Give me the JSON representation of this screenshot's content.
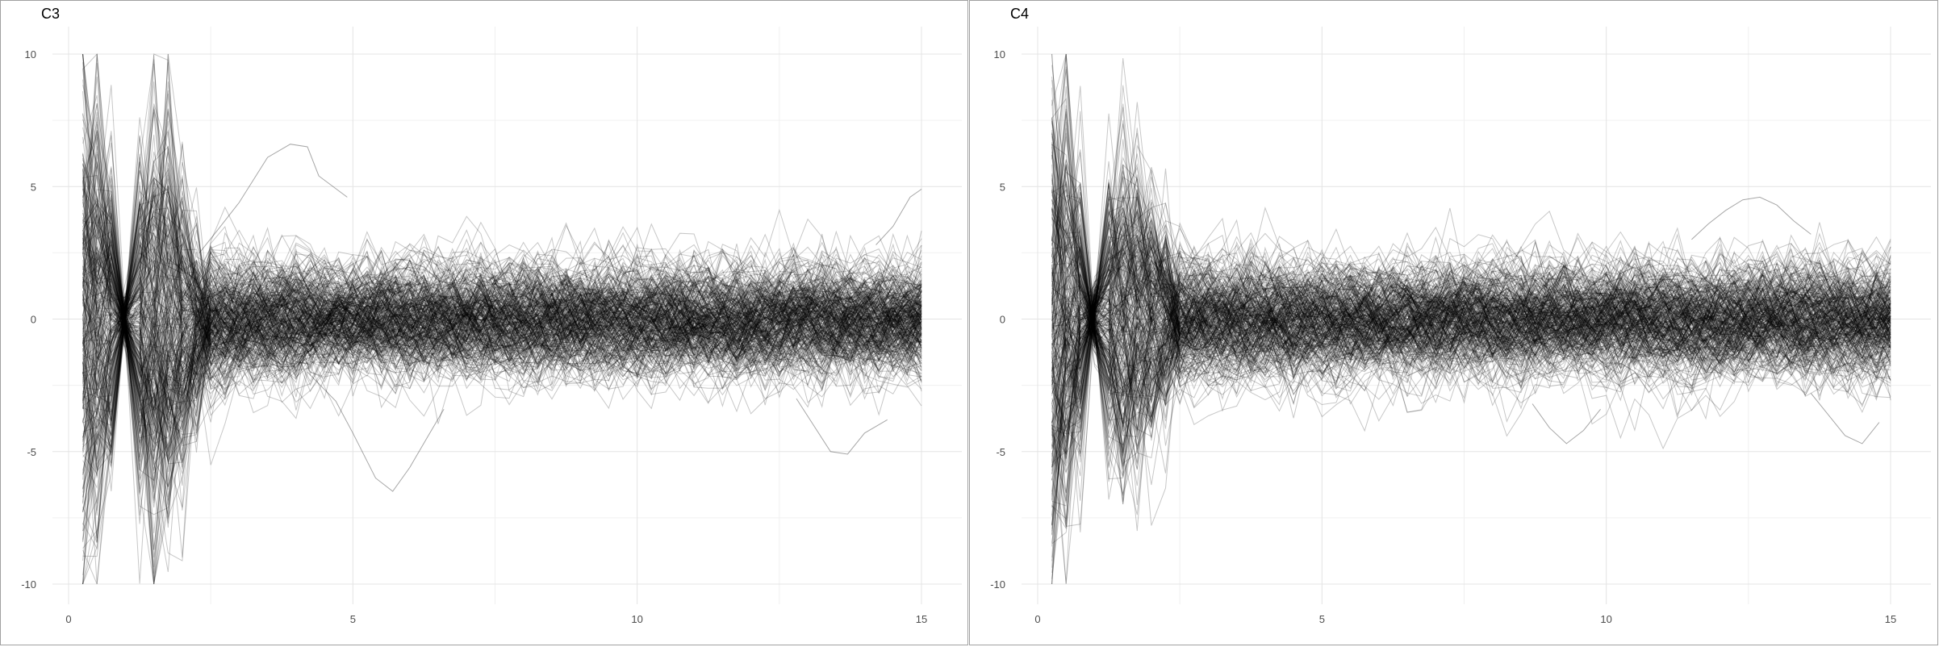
{
  "chart_data": [
    {
      "type": "line",
      "title": "C3",
      "xlabel": "",
      "ylabel": "",
      "xlim": [
        0,
        15
      ],
      "ylim": [
        -10,
        10
      ],
      "x_ticks": [
        0,
        5,
        10,
        15
      ],
      "y_ticks": [
        10,
        5,
        0,
        -5,
        -10
      ],
      "grid": true,
      "legend": "none",
      "line_color": "#000000",
      "series_count": 320,
      "x_sample_points": [
        0.25,
        0.5,
        0.75,
        1.0,
        1.25,
        1.5,
        1.75,
        2.0,
        2.25,
        2.5,
        2.75,
        3.0,
        3.25,
        3.5,
        3.75,
        4.0,
        4.25,
        4.5,
        4.75,
        5.0,
        5.25,
        5.5,
        5.75,
        6.0,
        6.25,
        6.5,
        6.75,
        7.0,
        7.25,
        7.5,
        7.75,
        8.0,
        8.25,
        8.5,
        8.75,
        9.0,
        9.25,
        9.5,
        9.75,
        10.0,
        10.25,
        10.5,
        10.75,
        11.0,
        11.25,
        11.5,
        11.75,
        12.0,
        12.25,
        12.5,
        12.75,
        13.0,
        13.25,
        13.5,
        13.75,
        14.0,
        14.25,
        14.5,
        14.75,
        15.0
      ],
      "spread_profile": {
        "x": [
          0.25,
          0.5,
          0.75,
          1.0,
          1.25,
          1.5,
          1.75,
          2.0,
          2.25,
          2.5,
          2.75,
          3.0,
          4.0,
          5.0,
          15.0
        ],
        "sd": [
          4.5,
          4.0,
          2.8,
          0.5,
          3.0,
          4.2,
          3.6,
          2.6,
          1.9,
          1.6,
          1.4,
          1.3,
          1.25,
          1.2,
          1.2
        ]
      },
      "annotations": [
        {
          "x": [
            2.3,
            2.6,
            3.0,
            3.5,
            3.9,
            4.2,
            4.4,
            4.9
          ],
          "y": [
            2.5,
            3.3,
            4.4,
            6.1,
            6.6,
            6.5,
            5.4,
            4.6
          ]
        },
        {
          "x": [
            4.2,
            4.7,
            5.0,
            5.4,
            5.7,
            6.0,
            6.3,
            6.6
          ],
          "y": [
            -2.0,
            -3.1,
            -4.3,
            -6.0,
            -6.5,
            -5.6,
            -4.5,
            -3.4
          ]
        },
        {
          "x": [
            12.8,
            13.1,
            13.4,
            13.7,
            14.0,
            14.4
          ],
          "y": [
            -3.0,
            -4.0,
            -5.0,
            -5.1,
            -4.3,
            -3.8
          ]
        },
        {
          "x": [
            14.2,
            14.5,
            14.8,
            15.0
          ],
          "y": [
            2.8,
            3.5,
            4.6,
            4.9
          ]
        }
      ]
    },
    {
      "type": "line",
      "title": "C4",
      "xlabel": "",
      "ylabel": "",
      "xlim": [
        0,
        15
      ],
      "ylim": [
        -10,
        10
      ],
      "x_ticks": [
        0,
        5,
        10,
        15
      ],
      "y_ticks": [
        10,
        5,
        0,
        -5,
        -10
      ],
      "grid": true,
      "legend": "none",
      "line_color": "#000000",
      "series_count": 320,
      "x_sample_points": [
        0.25,
        0.5,
        0.75,
        1.0,
        1.25,
        1.5,
        1.75,
        2.0,
        2.25,
        2.5,
        2.75,
        3.0,
        3.25,
        3.5,
        3.75,
        4.0,
        4.25,
        4.5,
        4.75,
        5.0,
        5.25,
        5.5,
        5.75,
        6.0,
        6.25,
        6.5,
        6.75,
        7.0,
        7.25,
        7.5,
        7.75,
        8.0,
        8.25,
        8.5,
        8.75,
        9.0,
        9.25,
        9.5,
        9.75,
        10.0,
        10.25,
        10.5,
        10.75,
        11.0,
        11.25,
        11.5,
        11.75,
        12.0,
        12.25,
        12.5,
        12.75,
        13.0,
        13.25,
        13.5,
        13.75,
        14.0,
        14.25,
        14.5,
        14.75,
        15.0
      ],
      "spread_profile": {
        "x": [
          0.25,
          0.5,
          0.75,
          1.0,
          1.25,
          1.5,
          1.75,
          2.0,
          2.25,
          2.5,
          2.75,
          3.0,
          4.0,
          5.0,
          15.0
        ],
        "sd": [
          4.6,
          4.2,
          2.5,
          0.6,
          2.6,
          3.4,
          3.0,
          2.4,
          1.8,
          1.5,
          1.35,
          1.3,
          1.25,
          1.2,
          1.2
        ]
      },
      "annotations": [
        {
          "x": [
            11.5,
            11.8,
            12.1,
            12.4,
            12.7,
            13.0,
            13.3,
            13.6
          ],
          "y": [
            3.0,
            3.6,
            4.1,
            4.5,
            4.6,
            4.3,
            3.7,
            3.2
          ]
        },
        {
          "x": [
            8.7,
            9.0,
            9.3,
            9.6,
            9.9
          ],
          "y": [
            -3.2,
            -4.1,
            -4.7,
            -4.2,
            -3.4
          ]
        },
        {
          "x": [
            13.6,
            13.9,
            14.2,
            14.5,
            14.8
          ],
          "y": [
            -2.8,
            -3.6,
            -4.4,
            -4.7,
            -3.9
          ]
        }
      ]
    }
  ]
}
